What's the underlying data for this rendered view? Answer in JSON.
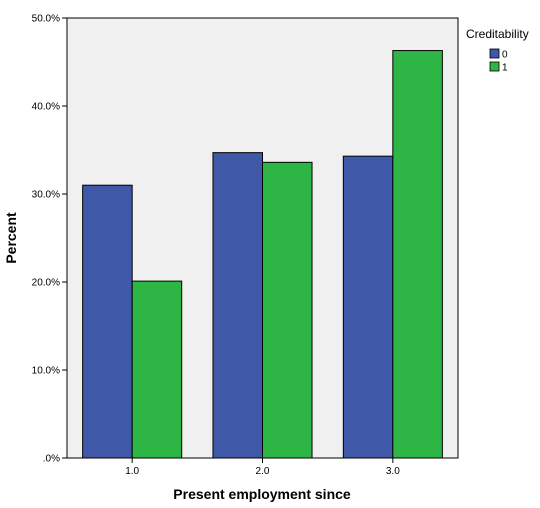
{
  "chart_data": {
    "type": "bar",
    "xlabel": "Present employment since",
    "ylabel": "Percent",
    "categories": [
      "1.0",
      "2.0",
      "3.0"
    ],
    "series": [
      {
        "name": "0",
        "values": [
          31.0,
          34.7,
          34.3
        ],
        "color": "#3f58a8"
      },
      {
        "name": "1",
        "values": [
          20.1,
          33.6,
          46.3
        ],
        "color": "#2db646"
      }
    ],
    "ylim": [
      0,
      50
    ],
    "yticks": [
      0,
      10,
      20,
      30,
      40,
      50
    ],
    "ytick_labels": [
      ".0%",
      "10.0%",
      "20.0%",
      "30.0%",
      "40.0%",
      "50.0%"
    ],
    "legend": {
      "title": "Creditability",
      "placement": "top-right-outside"
    },
    "grid": false,
    "plot_background": "#f0f0f0",
    "bar_outline": "#000000"
  }
}
